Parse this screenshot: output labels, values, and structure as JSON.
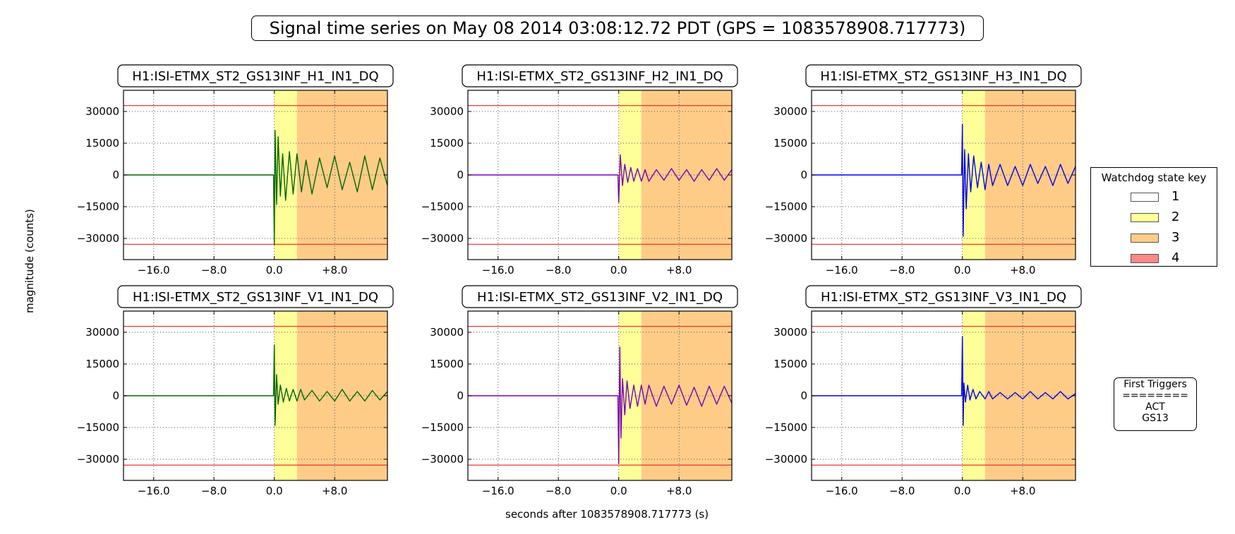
{
  "figure": {
    "title": "Signal time series on May 08 2014 03:08:12.72 PDT (GPS = 1083578908.717773)",
    "ylabel": "magnitude (counts)",
    "xlabel": "seconds after 1083578908.717773 (s)"
  },
  "legend": {
    "title": "Watchdog state key",
    "items": [
      {
        "label": "1",
        "color": "#ffffff"
      },
      {
        "label": "2",
        "color": "#ffff99"
      },
      {
        "label": "3",
        "color": "#ffcc88"
      },
      {
        "label": "4",
        "color": "#ff8888"
      }
    ]
  },
  "triggers": {
    "title": "First Triggers",
    "separator": "========",
    "lines": [
      "ACT",
      "GS13"
    ]
  },
  "chart_data": [
    {
      "type": "line",
      "title": "H1:ISI-ETMX_ST2_GS13INF_H1_IN1_DQ",
      "color": "#006600",
      "xlim": [
        -20,
        15
      ],
      "ylim": [
        -40000,
        40000
      ],
      "xticks": [
        -16,
        -8,
        0,
        8
      ],
      "xtick_labels": [
        "−16.0",
        "−8.0",
        "0.0",
        "+8.0"
      ],
      "yticks": [
        30000,
        15000,
        0,
        -15000,
        -30000
      ],
      "ytick_labels": [
        "30000",
        "15000",
        "0",
        "−15000",
        "−30000"
      ],
      "thresholds": [
        32768,
        -32768
      ],
      "state_bands": [
        {
          "state": 2,
          "x": [
            0,
            3
          ]
        },
        {
          "state": 3,
          "x": [
            3,
            15
          ]
        }
      ],
      "x": [
        -20,
        -0.1,
        0,
        0.1,
        0.3,
        0.5,
        0.8,
        1.1,
        1.5,
        2,
        2.5,
        3,
        3.6,
        4.2,
        5,
        6,
        7,
        8,
        9,
        10,
        11,
        12,
        13,
        14,
        15
      ],
      "y": [
        0,
        0,
        -33000,
        21000,
        -14000,
        18000,
        -10000,
        10000,
        -12000,
        11000,
        -9000,
        10000,
        -8000,
        7000,
        -9000,
        8000,
        -6000,
        9000,
        -7000,
        6000,
        -8000,
        9000,
        -7000,
        8000,
        -5000
      ]
    },
    {
      "type": "line",
      "title": "H1:ISI-ETMX_ST2_GS13INF_H2_IN1_DQ",
      "color": "#7700bb",
      "xlim": [
        -20,
        15
      ],
      "ylim": [
        -40000,
        40000
      ],
      "xticks": [
        -16,
        -8,
        0,
        8
      ],
      "xtick_labels": [
        "−16.0",
        "−8.0",
        "0.0",
        "+8.0"
      ],
      "yticks": [
        30000,
        15000,
        0,
        -15000,
        -30000
      ],
      "ytick_labels": [
        "30000",
        "15000",
        "0",
        "−15000",
        "−30000"
      ],
      "thresholds": [
        32768,
        -32768
      ],
      "state_bands": [
        {
          "state": 2,
          "x": [
            0,
            3
          ]
        },
        {
          "state": 3,
          "x": [
            3,
            15
          ]
        }
      ],
      "x": [
        -20,
        -0.1,
        0,
        0.2,
        0.5,
        0.8,
        1.2,
        1.6,
        2,
        2.5,
        3,
        3.5,
        4,
        5,
        6,
        7,
        8,
        9,
        10,
        11,
        12,
        13,
        14,
        15
      ],
      "y": [
        0,
        0,
        -13000,
        9500,
        -5000,
        5000,
        -3500,
        3500,
        -3000,
        3000,
        -3000,
        2500,
        -3000,
        2500,
        -2500,
        3000,
        -2500,
        2500,
        -3000,
        2500,
        -2500,
        3000,
        -2500,
        2500
      ]
    },
    {
      "type": "line",
      "title": "H1:ISI-ETMX_ST2_GS13INF_H3_IN1_DQ",
      "color": "#0000ee",
      "xlim": [
        -20,
        15
      ],
      "ylim": [
        -40000,
        40000
      ],
      "xticks": [
        -16,
        -8,
        0,
        8
      ],
      "xtick_labels": [
        "−16.0",
        "−8.0",
        "0.0",
        "+8.0"
      ],
      "yticks": [
        30000,
        15000,
        0,
        -15000,
        -30000
      ],
      "ytick_labels": [
        "30000",
        "15000",
        "0",
        "−15000",
        "−30000"
      ],
      "thresholds": [
        32768,
        -32768
      ],
      "state_bands": [
        {
          "state": 2,
          "x": [
            0,
            3
          ]
        },
        {
          "state": 3,
          "x": [
            3,
            15
          ]
        }
      ],
      "x": [
        -20,
        -0.1,
        0,
        0.1,
        0.3,
        0.5,
        0.8,
        1.1,
        1.5,
        2,
        2.5,
        3,
        3.5,
        4,
        5,
        6,
        7,
        8,
        9,
        10,
        11,
        12,
        13,
        14,
        15
      ],
      "y": [
        0,
        0,
        24000,
        -29000,
        12000,
        -16000,
        10000,
        -8000,
        9000,
        -6000,
        6000,
        -7000,
        5000,
        -5000,
        5000,
        -5000,
        4000,
        -5000,
        5000,
        -4000,
        4000,
        -5000,
        5000,
        -4000,
        4000
      ]
    },
    {
      "type": "line",
      "title": "H1:ISI-ETMX_ST2_GS13INF_V1_IN1_DQ",
      "color": "#006600",
      "xlim": [
        -20,
        15
      ],
      "ylim": [
        -40000,
        40000
      ],
      "xticks": [
        -16,
        -8,
        0,
        8
      ],
      "xtick_labels": [
        "−16.0",
        "−8.0",
        "0.0",
        "+8.0"
      ],
      "yticks": [
        30000,
        15000,
        0,
        -15000,
        -30000
      ],
      "ytick_labels": [
        "30000",
        "15000",
        "0",
        "−15000",
        "−30000"
      ],
      "thresholds": [
        32768,
        -32768
      ],
      "state_bands": [
        {
          "state": 2,
          "x": [
            0,
            3
          ]
        },
        {
          "state": 3,
          "x": [
            3,
            15
          ]
        }
      ],
      "x": [
        -20,
        -0.1,
        0,
        0.1,
        0.3,
        0.5,
        0.8,
        1.2,
        1.6,
        2,
        2.5,
        3,
        3.5,
        4,
        5,
        6,
        7,
        8,
        9,
        10,
        11,
        12,
        13,
        14,
        15
      ],
      "y": [
        0,
        0,
        24000,
        -14000,
        10000,
        -4000,
        5000,
        -3000,
        3500,
        -2500,
        3000,
        -2500,
        3000,
        -2000,
        2500,
        -2500,
        2000,
        -2500,
        3000,
        -2500,
        2000,
        -2500,
        2500,
        -2000,
        2000
      ]
    },
    {
      "type": "line",
      "title": "H1:ISI-ETMX_ST2_GS13INF_V2_IN1_DQ",
      "color": "#7700bb",
      "xlim": [
        -20,
        15
      ],
      "ylim": [
        -40000,
        40000
      ],
      "xticks": [
        -16,
        -8,
        0,
        8
      ],
      "xtick_labels": [
        "−16.0",
        "−8.0",
        "0.0",
        "+8.0"
      ],
      "yticks": [
        30000,
        15000,
        0,
        -15000,
        -30000
      ],
      "ytick_labels": [
        "30000",
        "15000",
        "0",
        "−15000",
        "−30000"
      ],
      "thresholds": [
        32768,
        -32768
      ],
      "state_bands": [
        {
          "state": 2,
          "x": [
            0,
            3
          ]
        },
        {
          "state": 3,
          "x": [
            3,
            15
          ]
        }
      ],
      "x": [
        -20,
        -0.1,
        0,
        0.15,
        0.3,
        0.5,
        0.8,
        1.1,
        1.5,
        2,
        2.5,
        3,
        3.5,
        4,
        5,
        6,
        7,
        8,
        9,
        10,
        11,
        12,
        13,
        14,
        15
      ],
      "y": [
        0,
        0,
        -32000,
        23000,
        -20000,
        8000,
        -9000,
        7000,
        -6000,
        5000,
        -5000,
        5000,
        -4000,
        5000,
        -5000,
        4500,
        -4000,
        5000,
        -4500,
        4000,
        -5000,
        4500,
        -4000,
        4500,
        -3500
      ]
    },
    {
      "type": "line",
      "title": "H1:ISI-ETMX_ST2_GS13INF_V3_IN1_DQ",
      "color": "#0000ee",
      "xlim": [
        -20,
        15
      ],
      "ylim": [
        -40000,
        40000
      ],
      "xticks": [
        -16,
        -8,
        0,
        8
      ],
      "xtick_labels": [
        "−16.0",
        "−8.0",
        "0.0",
        "+8.0"
      ],
      "yticks": [
        30000,
        15000,
        0,
        -15000,
        -30000
      ],
      "ytick_labels": [
        "30000",
        "15000",
        "0",
        "−15000",
        "−30000"
      ],
      "thresholds": [
        32768,
        -32768
      ],
      "state_bands": [
        {
          "state": 2,
          "x": [
            0,
            3
          ]
        },
        {
          "state": 3,
          "x": [
            3,
            15
          ]
        }
      ],
      "x": [
        -20,
        -0.1,
        0,
        0.1,
        0.2,
        0.4,
        0.7,
        1,
        1.4,
        1.8,
        2.3,
        3,
        3.5,
        4,
        5,
        6,
        7,
        8,
        9,
        10,
        11,
        12,
        13,
        14,
        15
      ],
      "y": [
        0,
        0,
        28000,
        -14000,
        6000,
        -3000,
        5000,
        -2000,
        3000,
        -1500,
        2000,
        -1500,
        2000,
        -1500,
        1500,
        -1500,
        1500,
        -1500,
        2000,
        -1500,
        1500,
        -1500,
        2000,
        -1500,
        1000
      ]
    }
  ]
}
